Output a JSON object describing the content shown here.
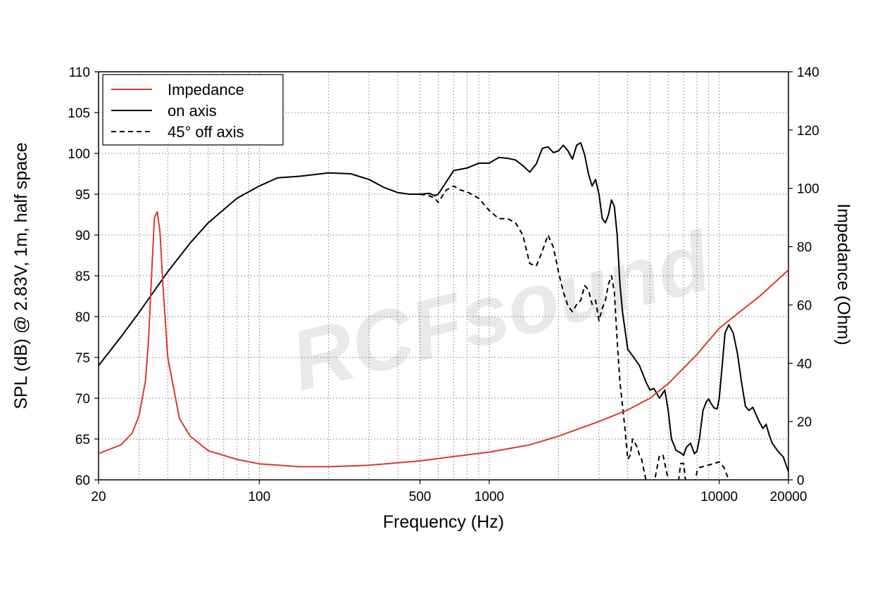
{
  "chart_data": {
    "type": "line",
    "xlabel": "Frequency (Hz)",
    "ylabel": "SPL (dB) @ 2.83V, 1m, half space",
    "y2label": "Impedance (Ohm)",
    "xscale": "log",
    "xlim": [
      20,
      20000
    ],
    "ylim": [
      60,
      110
    ],
    "y2lim": [
      0,
      140
    ],
    "grid": true,
    "legend_position": "top-left",
    "x_ticks": [
      {
        "value": 20,
        "label": "20"
      },
      {
        "value": 100,
        "label": "100"
      },
      {
        "value": 500,
        "label": "500"
      },
      {
        "value": 1000,
        "label": "1000"
      },
      {
        "value": 10000,
        "label": "10000"
      },
      {
        "value": 20000,
        "label": "20000"
      }
    ],
    "y_ticks": [
      "60",
      "65",
      "70",
      "75",
      "80",
      "85",
      "90",
      "95",
      "100",
      "105",
      "110"
    ],
    "y2_ticks": [
      "0",
      "20",
      "40",
      "60",
      "80",
      "100",
      "120",
      "140"
    ],
    "series": [
      {
        "name": "Impedance",
        "axis": "right",
        "color": "#d93a2b",
        "style": "solid",
        "x": [
          20,
          25,
          28,
          30,
          32,
          33,
          34,
          35,
          36,
          37,
          38,
          40,
          45,
          50,
          60,
          80,
          100,
          150,
          200,
          300,
          500,
          700,
          1000,
          1500,
          2000,
          3000,
          4000,
          5000,
          6000,
          8000,
          10000,
          12000,
          15000,
          20000
        ],
        "y": [
          9,
          12,
          16,
          22,
          34,
          48,
          70,
          90,
          92,
          85,
          68,
          42,
          21,
          15,
          10,
          7,
          5.5,
          4.5,
          4.5,
          5,
          6.5,
          8,
          9.5,
          12,
          15,
          20,
          24,
          28,
          33,
          43,
          52,
          57,
          63,
          72
        ]
      },
      {
        "name": "on axis",
        "axis": "left",
        "color": "#000000",
        "style": "solid",
        "x": [
          20,
          25,
          30,
          40,
          50,
          60,
          80,
          100,
          120,
          150,
          200,
          250,
          300,
          350,
          400,
          450,
          500,
          550,
          580,
          600,
          650,
          700,
          800,
          900,
          1000,
          1100,
          1200,
          1300,
          1400,
          1500,
          1600,
          1700,
          1800,
          1900,
          2000,
          2100,
          2200,
          2300,
          2400,
          2500,
          2600,
          2700,
          2800,
          2900,
          3000,
          3100,
          3200,
          3300,
          3400,
          3500,
          3600,
          3700,
          3800,
          4000,
          4200,
          4500,
          4800,
          5000,
          5200,
          5500,
          5800,
          6000,
          6200,
          6500,
          6800,
          7000,
          7200,
          7500,
          7800,
          8000,
          8200,
          8500,
          8800,
          9000,
          9200,
          9500,
          9800,
          10000,
          10300,
          10600,
          11000,
          11500,
          12000,
          12500,
          13000,
          13500,
          14000,
          14500,
          15000,
          15500,
          16000,
          16500,
          17000,
          18000,
          19000,
          20000
        ],
        "y": [
          74,
          77.5,
          80.5,
          85.5,
          89,
          91.5,
          94.5,
          96,
          97,
          97.2,
          97.6,
          97.5,
          96.8,
          95.8,
          95.2,
          95.0,
          95.0,
          95.1,
          94.8,
          95.0,
          96.5,
          97.9,
          98.2,
          98.8,
          98.8,
          99.5,
          99.4,
          99.2,
          98.5,
          97.7,
          98.7,
          100.6,
          100.8,
          100.1,
          100.3,
          101.0,
          100.3,
          99.3,
          101.0,
          101.3,
          99.8,
          97.5,
          96.0,
          96.8,
          95.0,
          92.0,
          91.5,
          92.5,
          94.3,
          93.5,
          90.0,
          84.0,
          80.5,
          76.0,
          75.2,
          74.0,
          72.0,
          71.0,
          71.2,
          70.0,
          71.0,
          68.5,
          65.0,
          63.6,
          63.3,
          63.0,
          64.0,
          64.5,
          63.2,
          63.5,
          65.0,
          68.5,
          69.6,
          69.9,
          69.4,
          68.8,
          68.7,
          70.0,
          74.0,
          78.0,
          79.0,
          78.0,
          75.5,
          72.0,
          69.0,
          68.5,
          68.9,
          67.9,
          67.0,
          66.3,
          66.8,
          65.5,
          64.5,
          63.5,
          62.8,
          61.0
        ]
      },
      {
        "name": "45° off axis",
        "axis": "left",
        "color": "#000000",
        "style": "dashed",
        "x": [
          500,
          550,
          580,
          600,
          650,
          700,
          750,
          800,
          900,
          1000,
          1100,
          1200,
          1300,
          1400,
          1500,
          1600,
          1700,
          1800,
          1900,
          2000,
          2100,
          2200,
          2300,
          2400,
          2500,
          2600,
          2700,
          2800,
          2900,
          3000,
          3100,
          3200,
          3300,
          3400,
          3500,
          3600,
          3700,
          3800,
          3900,
          4000,
          4100,
          4200,
          4400,
          4500,
          4600,
          4800,
          5000,
          5200,
          5500,
          5700,
          5800,
          6100,
          6300,
          6600,
          6800,
          7000,
          7200,
          7500,
          7800,
          8000,
          8200,
          9500,
          10000,
          10500,
          11000
        ],
        "y": [
          95,
          94.8,
          94.5,
          94.0,
          95.5,
          96.0,
          95.5,
          95.3,
          94.5,
          93.0,
          92.0,
          92.0,
          91.5,
          90.0,
          86.5,
          86.2,
          88.0,
          90.0,
          88.5,
          85.5,
          83.0,
          81.3,
          80.6,
          81.5,
          82.0,
          83.8,
          83.3,
          81.5,
          82.0,
          79.5,
          81.0,
          82.0,
          84.0,
          85.0,
          83.0,
          77.0,
          72.0,
          69.0,
          66.0,
          62.5,
          63.0,
          65.0,
          64.0,
          63.0,
          62.5,
          60.0,
          58.5,
          59.5,
          63.0,
          63.0,
          62.0,
          59.0,
          58.0,
          59.0,
          62.0,
          62.0,
          59.0,
          58.0,
          59.0,
          61.0,
          61.5,
          62.0,
          62.2,
          61.5,
          60.0
        ]
      }
    ]
  },
  "watermark": "RCFsound"
}
